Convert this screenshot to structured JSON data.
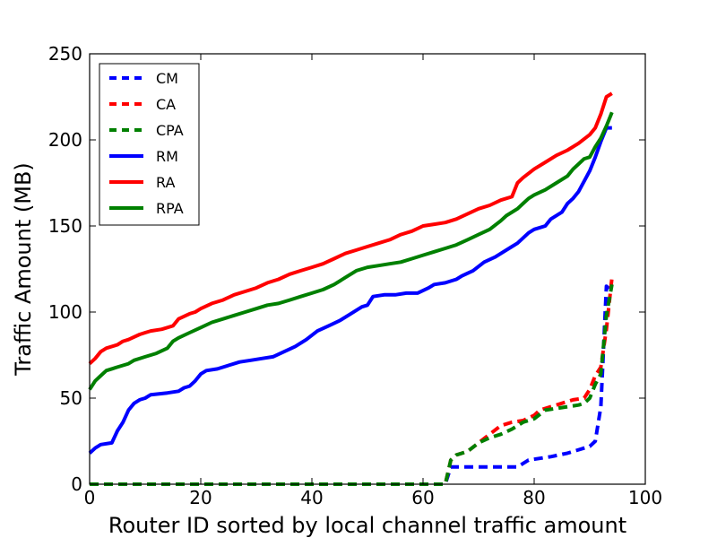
{
  "chart_data": {
    "type": "line",
    "title": "",
    "xlabel": "Router ID sorted by local channel traffic amount",
    "ylabel": "Traffic Amount (MB)",
    "xlim": [
      0,
      100
    ],
    "ylim": [
      0,
      250
    ],
    "xticks": [
      0,
      20,
      40,
      60,
      80,
      100
    ],
    "yticks": [
      0,
      50,
      100,
      150,
      200,
      250
    ],
    "grid": false,
    "legend_position": "top-left",
    "series": [
      {
        "name": "CM",
        "color": "#0000ff",
        "style": "dashed",
        "points": [
          [
            0,
            0
          ],
          [
            64,
            0
          ],
          [
            65,
            10
          ],
          [
            77,
            10
          ],
          [
            79,
            14
          ],
          [
            81,
            15
          ],
          [
            83,
            16
          ],
          [
            86,
            18
          ],
          [
            88,
            20
          ],
          [
            90,
            22
          ],
          [
            91,
            25
          ],
          [
            92,
            45
          ],
          [
            93,
            115
          ],
          [
            94,
            112
          ]
        ]
      },
      {
        "name": "CA",
        "color": "#ff0000",
        "style": "dashed",
        "points": [
          [
            0,
            0
          ],
          [
            64,
            0
          ],
          [
            65,
            14
          ],
          [
            66,
            17
          ],
          [
            68,
            19
          ],
          [
            70,
            24
          ],
          [
            72,
            29
          ],
          [
            74,
            34
          ],
          [
            76,
            36
          ],
          [
            78,
            37
          ],
          [
            80,
            40
          ],
          [
            81,
            43
          ],
          [
            82,
            44
          ],
          [
            84,
            46
          ],
          [
            86,
            48
          ],
          [
            87,
            49
          ],
          [
            89,
            50
          ],
          [
            90,
            55
          ],
          [
            91,
            63
          ],
          [
            92,
            68
          ],
          [
            93,
            90
          ],
          [
            94,
            120
          ]
        ]
      },
      {
        "name": "CPA",
        "color": "#008000",
        "style": "dashed",
        "points": [
          [
            0,
            0
          ],
          [
            64,
            0
          ],
          [
            65,
            14
          ],
          [
            66,
            17
          ],
          [
            68,
            19
          ],
          [
            70,
            24
          ],
          [
            72,
            27
          ],
          [
            74,
            29
          ],
          [
            76,
            32
          ],
          [
            78,
            36
          ],
          [
            80,
            38
          ],
          [
            82,
            43
          ],
          [
            84,
            44
          ],
          [
            86,
            45
          ],
          [
            88,
            46
          ],
          [
            89,
            47
          ],
          [
            90,
            50
          ],
          [
            91,
            58
          ],
          [
            92,
            64
          ],
          [
            93,
            98
          ],
          [
            94,
            116
          ]
        ]
      },
      {
        "name": "RM",
        "color": "#0000ff",
        "style": "solid",
        "points": [
          [
            0,
            18
          ],
          [
            1,
            21
          ],
          [
            2,
            23
          ],
          [
            4,
            24
          ],
          [
            5,
            31
          ],
          [
            6,
            36
          ],
          [
            7,
            43
          ],
          [
            8,
            47
          ],
          [
            9,
            49
          ],
          [
            10,
            50
          ],
          [
            11,
            52
          ],
          [
            14,
            53
          ],
          [
            16,
            54
          ],
          [
            17,
            56
          ],
          [
            18,
            57
          ],
          [
            19,
            60
          ],
          [
            20,
            64
          ],
          [
            21,
            66
          ],
          [
            23,
            67
          ],
          [
            25,
            69
          ],
          [
            27,
            71
          ],
          [
            29,
            72
          ],
          [
            31,
            73
          ],
          [
            33,
            74
          ],
          [
            35,
            77
          ],
          [
            37,
            80
          ],
          [
            39,
            84
          ],
          [
            41,
            89
          ],
          [
            43,
            92
          ],
          [
            45,
            95
          ],
          [
            47,
            99
          ],
          [
            49,
            103
          ],
          [
            50,
            104
          ],
          [
            51,
            109
          ],
          [
            53,
            110
          ],
          [
            55,
            110
          ],
          [
            57,
            111
          ],
          [
            59,
            111
          ],
          [
            61,
            114
          ],
          [
            62,
            116
          ],
          [
            64,
            117
          ],
          [
            66,
            119
          ],
          [
            67,
            121
          ],
          [
            69,
            124
          ],
          [
            71,
            129
          ],
          [
            73,
            132
          ],
          [
            74,
            134
          ],
          [
            76,
            138
          ],
          [
            77,
            140
          ],
          [
            78,
            143
          ],
          [
            79,
            146
          ],
          [
            80,
            148
          ],
          [
            82,
            150
          ],
          [
            83,
            154
          ],
          [
            85,
            158
          ],
          [
            86,
            163
          ],
          [
            87,
            166
          ],
          [
            88,
            170
          ],
          [
            89,
            176
          ],
          [
            90,
            182
          ],
          [
            91,
            190
          ],
          [
            92,
            199
          ],
          [
            93,
            207
          ],
          [
            94,
            207
          ]
        ]
      },
      {
        "name": "RA",
        "color": "#ff0000",
        "style": "solid",
        "points": [
          [
            0,
            70
          ],
          [
            1,
            73
          ],
          [
            2,
            77
          ],
          [
            3,
            79
          ],
          [
            5,
            81
          ],
          [
            6,
            83
          ],
          [
            7,
            84
          ],
          [
            9,
            87
          ],
          [
            10,
            88
          ],
          [
            11,
            89
          ],
          [
            13,
            90
          ],
          [
            15,
            92
          ],
          [
            16,
            96
          ],
          [
            18,
            99
          ],
          [
            19,
            100
          ],
          [
            20,
            102
          ],
          [
            22,
            105
          ],
          [
            24,
            107
          ],
          [
            26,
            110
          ],
          [
            28,
            112
          ],
          [
            30,
            114
          ],
          [
            32,
            117
          ],
          [
            34,
            119
          ],
          [
            36,
            122
          ],
          [
            38,
            124
          ],
          [
            40,
            126
          ],
          [
            42,
            128
          ],
          [
            44,
            131
          ],
          [
            46,
            134
          ],
          [
            48,
            136
          ],
          [
            50,
            138
          ],
          [
            52,
            140
          ],
          [
            54,
            142
          ],
          [
            56,
            145
          ],
          [
            58,
            147
          ],
          [
            60,
            150
          ],
          [
            62,
            151
          ],
          [
            64,
            152
          ],
          [
            66,
            154
          ],
          [
            68,
            157
          ],
          [
            70,
            160
          ],
          [
            72,
            162
          ],
          [
            74,
            165
          ],
          [
            76,
            167
          ],
          [
            77,
            175
          ],
          [
            78,
            178
          ],
          [
            80,
            183
          ],
          [
            82,
            187
          ],
          [
            84,
            191
          ],
          [
            86,
            194
          ],
          [
            88,
            198
          ],
          [
            90,
            203
          ],
          [
            91,
            207
          ],
          [
            92,
            215
          ],
          [
            93,
            225
          ],
          [
            94,
            227
          ]
        ]
      },
      {
        "name": "RPA",
        "color": "#008000",
        "style": "solid",
        "points": [
          [
            0,
            55
          ],
          [
            1,
            60
          ],
          [
            2,
            63
          ],
          [
            3,
            66
          ],
          [
            5,
            68
          ],
          [
            6,
            69
          ],
          [
            7,
            70
          ],
          [
            8,
            72
          ],
          [
            10,
            74
          ],
          [
            12,
            76
          ],
          [
            14,
            79
          ],
          [
            15,
            83
          ],
          [
            16,
            85
          ],
          [
            18,
            88
          ],
          [
            20,
            91
          ],
          [
            22,
            94
          ],
          [
            24,
            96
          ],
          [
            26,
            98
          ],
          [
            28,
            100
          ],
          [
            30,
            102
          ],
          [
            32,
            104
          ],
          [
            34,
            105
          ],
          [
            36,
            107
          ],
          [
            38,
            109
          ],
          [
            40,
            111
          ],
          [
            42,
            113
          ],
          [
            44,
            116
          ],
          [
            46,
            120
          ],
          [
            48,
            124
          ],
          [
            50,
            126
          ],
          [
            52,
            127
          ],
          [
            54,
            128
          ],
          [
            56,
            129
          ],
          [
            58,
            131
          ],
          [
            60,
            133
          ],
          [
            62,
            135
          ],
          [
            64,
            137
          ],
          [
            66,
            139
          ],
          [
            68,
            142
          ],
          [
            70,
            145
          ],
          [
            72,
            148
          ],
          [
            74,
            153
          ],
          [
            75,
            156
          ],
          [
            77,
            160
          ],
          [
            78,
            163
          ],
          [
            79,
            166
          ],
          [
            80,
            168
          ],
          [
            82,
            171
          ],
          [
            84,
            175
          ],
          [
            86,
            179
          ],
          [
            87,
            183
          ],
          [
            88,
            186
          ],
          [
            89,
            189
          ],
          [
            90,
            190
          ],
          [
            91,
            196
          ],
          [
            92,
            201
          ],
          [
            93,
            208
          ],
          [
            94,
            216
          ]
        ]
      }
    ]
  }
}
